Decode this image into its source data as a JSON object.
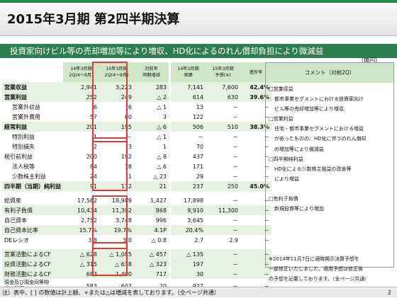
{
  "page_title": "2015年3月期 第2四半期決算",
  "subtitle": "投資家向けビル等の売却増加等により増収、HD化によるのれん償却負担により微減益",
  "unit": "（億円）",
  "headers": [
    "14年3月期|2Q(4～9月)",
    "15年3月期|2Q(4～9月)",
    "対前年|同期増減",
    "14年3月期|実績",
    "15年3月期|予想(※)",
    "進捗率"
  ],
  "comment_header": "コメント（対前2Q）",
  "rows": [
    {
      "label": "営業収益",
      "c1": "2,941",
      "c2": "3,223",
      "c3": "283",
      "c4": "7,141",
      "c5": "7,600",
      "c6": "42.4%"
    },
    {
      "label": "営業利益",
      "c1": "252",
      "c2": "249",
      "c3": "△ 2",
      "c4": "614",
      "c5": "630",
      "c6": "39.6%"
    },
    {
      "label": "営業外収益",
      "c1": "6",
      "c2": "6",
      "c3": "△ 1",
      "c4": "13",
      "c5": "－",
      "c6": "－"
    },
    {
      "label": "営業外費用",
      "c1": "57",
      "c2": "60",
      "c3": "3",
      "c4": "122",
      "c5": "－",
      "c6": "－"
    },
    {
      "label": "経常利益",
      "c1": "201",
      "c2": "195",
      "c3": "△ 6",
      "c4": "506",
      "c5": "510",
      "c6": "38.3%"
    },
    {
      "label": "特別利益",
      "c1": "1",
      "c2": "－",
      "c3": "△ 1",
      "c4": "－",
      "c5": "－",
      "c6": "－"
    },
    {
      "label": "特別損失",
      "c1": "2",
      "c2": "3",
      "c3": "1",
      "c4": "70",
      "c5": "－",
      "c6": "－"
    },
    {
      "label": "税引前利益",
      "c1": "200",
      "c2": "192",
      "c3": "△ 8",
      "c4": "437",
      "c5": "－",
      "c6": "－"
    },
    {
      "label": "法人税等",
      "c1": "84",
      "c2": "78",
      "c3": "△ 6",
      "c4": "171",
      "c5": "－",
      "c6": "－"
    },
    {
      "label": "少数株主利益",
      "c1": "24",
      "c2": "1",
      "c3": "△ 23",
      "c4": "29",
      "c5": "－",
      "c6": "－"
    },
    {
      "label": "四半期（当期）純利益",
      "c1": "91",
      "c2": "112",
      "c3": "21",
      "c4": "237",
      "c5": "250",
      "c6": "45.0%"
    },
    {
      "label": "総資産",
      "c1": "17,562",
      "c2": "18,989",
      "c3": "1,427",
      "c4": "17,898",
      "c5": "－",
      "c6": "－"
    },
    {
      "label": "有利子負債",
      "c1": "10,434",
      "c2": "11,302",
      "c3": "868",
      "c4": "9,910",
      "c5": "11,300",
      "c6": "－"
    },
    {
      "label": "自己資本",
      "c1": "2,752",
      "c2": "3,748",
      "c3": "996",
      "c4": "3,645",
      "c5": "－",
      "c6": "－"
    },
    {
      "label": "自己資本比率",
      "c1": "15.7%",
      "c2": "19.7%",
      "c3": "4.1P",
      "c4": "20.4%",
      "c5": "－",
      "c6": "－"
    },
    {
      "label": "DEレシオ",
      "c1": "3.8",
      "c2": "3.0",
      "c3": "△ 0.8",
      "c4": "2.7",
      "c5": "2.9",
      "c6": "－"
    },
    {
      "label": "営業活動によるCF",
      "c1": "△ 628",
      "c2": "△ 1,085",
      "c3": "△ 457",
      "c4": "△ 135",
      "c5": "－",
      "c6": "－"
    },
    {
      "label": "投資活動によるCF",
      "c1": "△ 315",
      "c2": "△ 638",
      "c3": "△ 323",
      "c4": "197",
      "c5": "－",
      "c6": "－"
    },
    {
      "label": "財務活動によるCF",
      "c1": "683",
      "c2": "1,400",
      "c3": "717",
      "c4": "30",
      "c5": "－",
      "c6": "－"
    },
    {
      "label": "現金及び現金同等物|期末残高",
      "c1": "583",
      "c2": "602",
      "c3": "20",
      "c4": "927",
      "c5": "－",
      "c6": "－"
    }
  ],
  "comments": [
    "□営業収益",
    "都市事業セグメントにおける投資家向け",
    "ビル等の売却増加等により増収",
    "□営業利益",
    "住宅・都市事業セグメントにおける増益",
    "があったものの、HD化に伴うのれん償却",
    "の増加等により微減益",
    "□四半期純利益",
    "HD化による少数株主損益の改善等",
    "により増益",
    "",
    "□有利子負債",
    "新規投資等により増加",
    "",
    "",
    "",
    "",
    "※2014年11月7日に適時開示決算予想を",
    "一部修正いたしました。適用予想は修正後",
    "の予想を記載しております。（全ページ共通）"
  ],
  "footnote": "注）表中、[ ] の数値は計上額、+または△は増減を表しております。（全ページ共通）",
  "page_number": "2"
}
